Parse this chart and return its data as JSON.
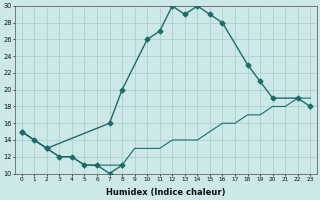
{
  "xlabel": "Humidex (Indice chaleur)",
  "bg_color": "#cce8e8",
  "grid_color": "#aacccc",
  "line_color": "#1a6e6a",
  "ylim": [
    10,
    30
  ],
  "xlim": [
    -0.5,
    23.5
  ],
  "yticks": [
    10,
    12,
    14,
    16,
    18,
    20,
    22,
    24,
    26,
    28,
    30
  ],
  "xticks": [
    0,
    1,
    2,
    3,
    4,
    5,
    6,
    7,
    8,
    9,
    10,
    11,
    12,
    13,
    14,
    15,
    16,
    17,
    18,
    19,
    20,
    21,
    22,
    23
  ],
  "line1_x": [
    0,
    1,
    2,
    3,
    4,
    5,
    6,
    7,
    8
  ],
  "line1_y": [
    15,
    14,
    13,
    12,
    12,
    11,
    11,
    10,
    11
  ],
  "line2_x": [
    0,
    2,
    7,
    8,
    10,
    11,
    12,
    13,
    14,
    15,
    16,
    18,
    19,
    20,
    22,
    23
  ],
  "line2_y": [
    15,
    13,
    16,
    20,
    26,
    27,
    30,
    29,
    30,
    29,
    28,
    23,
    21,
    19,
    19,
    18
  ],
  "line3_x": [
    0,
    2,
    3,
    4,
    5,
    6,
    7,
    8,
    9,
    10,
    11,
    12,
    13,
    14,
    15,
    16,
    17,
    18,
    19,
    20,
    21,
    22,
    23
  ],
  "line3_y": [
    15,
    13,
    12,
    12,
    11,
    11,
    11,
    11,
    13,
    13,
    13,
    14,
    14,
    14,
    15,
    16,
    16,
    17,
    17,
    18,
    18,
    19,
    19
  ],
  "line1_style": "solid",
  "line2_style": "solid",
  "line3_style": "solid",
  "marker": "D",
  "markersize": 2.5,
  "linewidth1": 1.0,
  "linewidth2": 1.0,
  "linewidth3": 0.8
}
